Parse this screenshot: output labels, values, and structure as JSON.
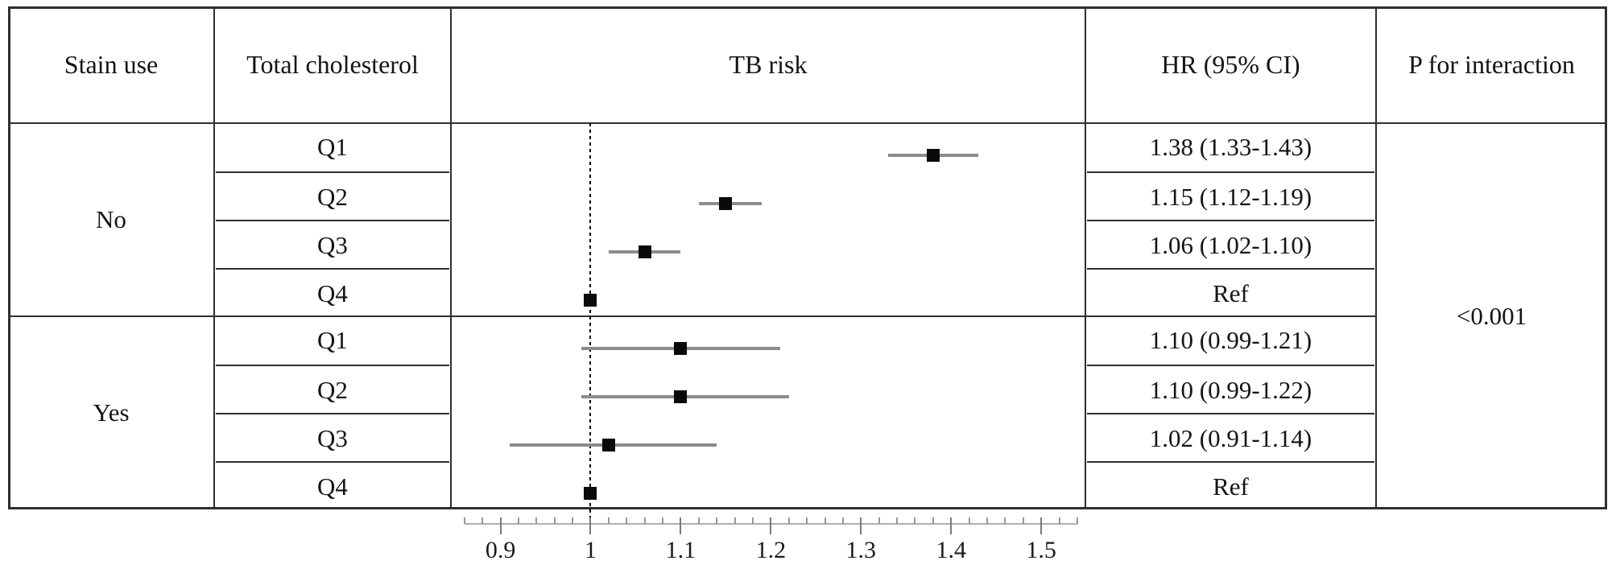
{
  "table": {
    "headers": [
      "Stain use",
      "Total cholesterol",
      "TB risk",
      "HR (95% CI)",
      "P for interaction"
    ],
    "groups": [
      "No",
      "Yes"
    ],
    "p_for_interaction": "<0.001"
  },
  "chart_data": {
    "type": "forest",
    "title": "TB risk",
    "xlabel": "",
    "x_axis": {
      "tick_labels": [
        "0.9",
        "1",
        "1.1",
        "1.2",
        "1.3",
        "1.4",
        "1.5"
      ],
      "major_ticks": [
        0.9,
        1.0,
        1.1,
        1.2,
        1.3,
        1.4,
        1.5
      ],
      "minor_tick_step": 0.02,
      "line_range": [
        0.86,
        1.54
      ],
      "plot_range": [
        0.845,
        1.549
      ],
      "reference_line": 1.0
    },
    "rows": [
      {
        "group": "No",
        "quartile": "Q1",
        "hr": 1.38,
        "ci_low": 1.33,
        "ci_high": 1.43,
        "hr_label": "1.38 (1.33-1.43)"
      },
      {
        "group": "No",
        "quartile": "Q2",
        "hr": 1.15,
        "ci_low": 1.12,
        "ci_high": 1.19,
        "hr_label": "1.15 (1.12-1.19)"
      },
      {
        "group": "No",
        "quartile": "Q3",
        "hr": 1.06,
        "ci_low": 1.02,
        "ci_high": 1.1,
        "hr_label": "1.06 (1.02-1.10)"
      },
      {
        "group": "No",
        "quartile": "Q4",
        "hr": 1.0,
        "ci_low": null,
        "ci_high": null,
        "hr_label": "Ref"
      },
      {
        "group": "Yes",
        "quartile": "Q1",
        "hr": 1.1,
        "ci_low": 0.99,
        "ci_high": 1.21,
        "hr_label": "1.10 (0.99-1.21)"
      },
      {
        "group": "Yes",
        "quartile": "Q2",
        "hr": 1.1,
        "ci_low": 0.99,
        "ci_high": 1.22,
        "hr_label": "1.10 (0.99-1.22)"
      },
      {
        "group": "Yes",
        "quartile": "Q3",
        "hr": 1.02,
        "ci_low": 0.91,
        "ci_high": 1.14,
        "hr_label": "1.02 (0.91-1.14)"
      },
      {
        "group": "Yes",
        "quartile": "Q4",
        "hr": 1.0,
        "ci_low": null,
        "ci_high": null,
        "hr_label": "Ref"
      }
    ]
  }
}
